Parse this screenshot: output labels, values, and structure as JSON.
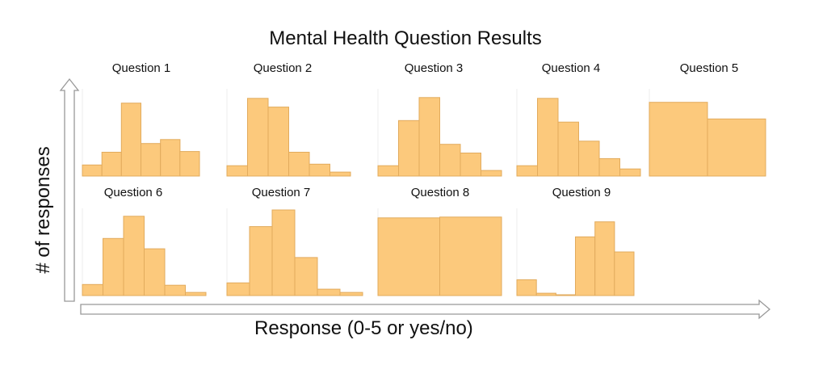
{
  "chart_data": {
    "title": "Mental Health Question Results",
    "xlabel": "Response (0-5 or yes/no)",
    "ylabel": "# of responses",
    "type": "bar",
    "bar_color": "#fcc97c",
    "panels": [
      {
        "title": "Question 1",
        "values": [
          14,
          30,
          92,
          41,
          46,
          31
        ]
      },
      {
        "title": "Question 2",
        "values": [
          13,
          98,
          87,
          30,
          15,
          5
        ]
      },
      {
        "title": "Question 3",
        "values": [
          13,
          70,
          99,
          40,
          29,
          7
        ]
      },
      {
        "title": "Question 4",
        "values": [
          13,
          98,
          68,
          44,
          22,
          9
        ]
      },
      {
        "title": "Question 5",
        "values": [
          93,
          72
        ]
      },
      {
        "title": "Question 6",
        "values": [
          14,
          72,
          100,
          59,
          13,
          4
        ]
      },
      {
        "title": "Question 7",
        "values": [
          16,
          87,
          108,
          48,
          8,
          4
        ]
      },
      {
        "title": "Question 8",
        "values": [
          98,
          99
        ]
      },
      {
        "title": "Question 9",
        "values": [
          20,
          3,
          1,
          74,
          93,
          55
        ]
      }
    ]
  }
}
